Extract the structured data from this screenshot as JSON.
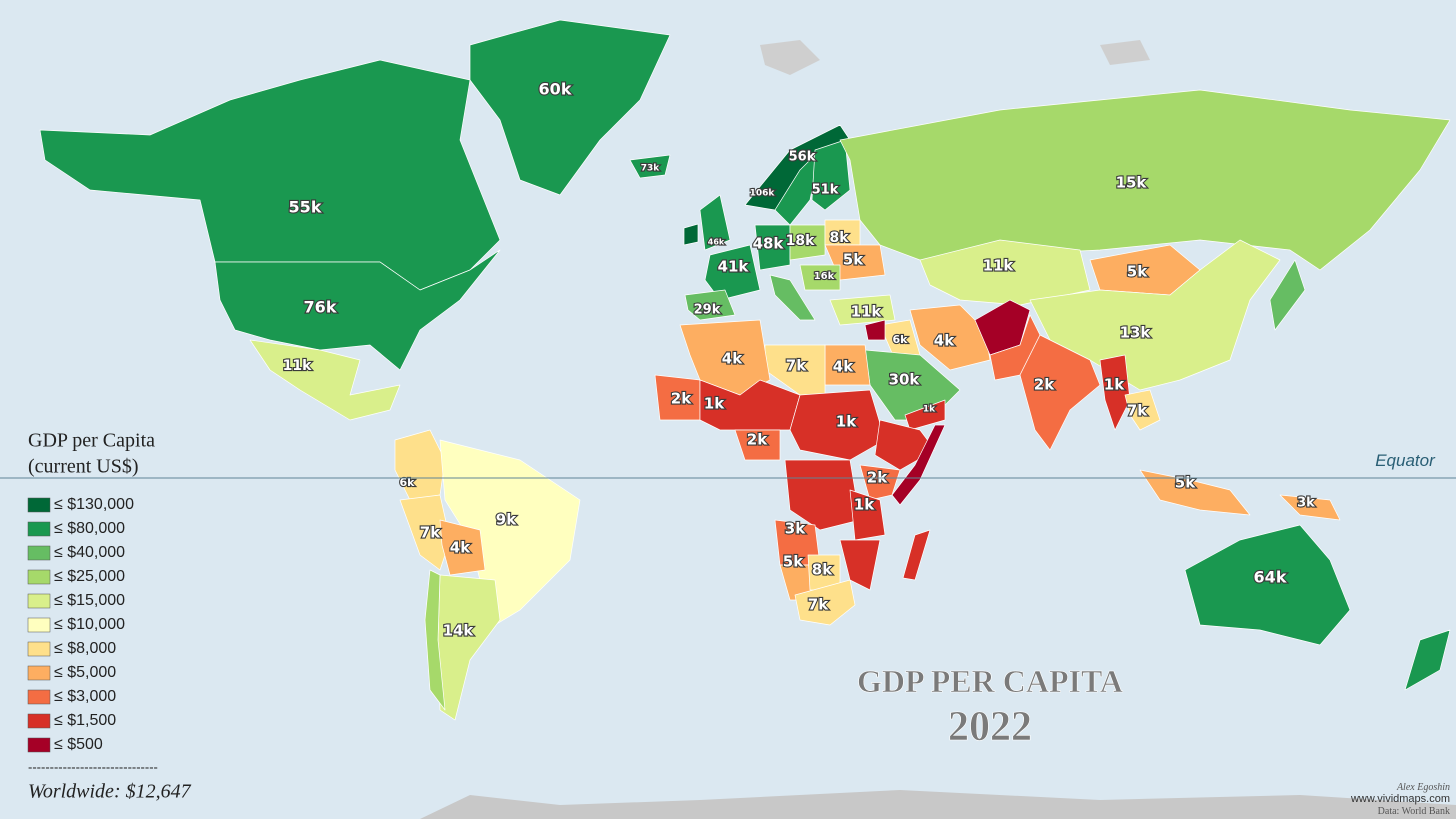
{
  "title": "GDP PER CAPITA",
  "year": "2022",
  "legend": {
    "title": [
      "GDP per Capita",
      "(current US$)"
    ],
    "items": [
      {
        "label": "≤ $130,000",
        "color": "#006837"
      },
      {
        "label": "≤ $80,000",
        "color": "#1a9850"
      },
      {
        "label": "≤ $40,000",
        "color": "#66bd63"
      },
      {
        "label": "≤ $25,000",
        "color": "#a6d96a"
      },
      {
        "label": "≤ $15,000",
        "color": "#d9ef8b"
      },
      {
        "label": "≤ $10,000",
        "color": "#ffffbf"
      },
      {
        "label": "≤ $8,000",
        "color": "#fee08b"
      },
      {
        "label": "≤ $5,000",
        "color": "#fdae61"
      },
      {
        "label": "≤ $3,000",
        "color": "#f46d43"
      },
      {
        "label": "≤ $1,500",
        "color": "#d73027"
      },
      {
        "label": "≤ $500",
        "color": "#a50026"
      }
    ],
    "separator": "------------------------------",
    "worldwide": "Worldwide: $12,647"
  },
  "equator": "Equator",
  "credits": [
    "Alex Egoshin",
    "www.vividmaps.com",
    "Data: World Bank"
  ],
  "regions": [
    {
      "label": "60k",
      "color": "#1a9850"
    },
    {
      "label": "55k",
      "color": "#1a9850"
    },
    {
      "label": "76k",
      "color": "#1a9850"
    },
    {
      "label": "11k",
      "color": "#d9ef8b"
    },
    {
      "label": "6k",
      "color": "#fee08b"
    },
    {
      "label": "9k",
      "color": "#ffffbf"
    },
    {
      "label": "7k",
      "color": "#fee08b"
    },
    {
      "label": "4k",
      "color": "#fdae61"
    },
    {
      "label": "14k",
      "color": "#d9ef8b"
    },
    {
      "color": "#a6d96a"
    },
    {
      "label": "73k",
      "color": "#1a9850"
    },
    {
      "label": "46k",
      "color": "#1a9850"
    },
    {
      "color": "#006837"
    },
    {
      "label": "106k",
      "color": "#006837"
    },
    {
      "label": "56k",
      "color": "#1a9850"
    },
    {
      "label": "51k",
      "color": "#1a9850"
    },
    {
      "label": "41k",
      "color": "#1a9850"
    },
    {
      "label": "48k",
      "color": "#1a9850"
    },
    {
      "label": "29k",
      "color": "#66bd63"
    },
    {
      "color": "#66bd63"
    },
    {
      "label": "18k",
      "color": "#a6d96a"
    },
    {
      "label": "8k",
      "color": "#fee08b"
    },
    {
      "label": "5k",
      "color": "#fdae61"
    },
    {
      "label": "16k",
      "color": "#a6d96a"
    },
    {
      "label": "11k",
      "color": "#d9ef8b"
    },
    {
      "label": "15k",
      "color": "#a6d96a"
    },
    {
      "label": "11k",
      "color": "#d9ef8b"
    },
    {
      "label": "5k",
      "color": "#fdae61"
    },
    {
      "label": "13k",
      "color": "#d9ef8b"
    },
    {
      "label": "4k",
      "color": "#fdae61"
    },
    {
      "color": "#a50026"
    },
    {
      "color": "#f46d43"
    },
    {
      "label": "2k",
      "color": "#f46d43"
    },
    {
      "label": "1k",
      "color": "#d73027"
    },
    {
      "label": "7k",
      "color": "#fee08b"
    },
    {
      "label": "6k",
      "color": "#fee08b"
    },
    {
      "color": "#a50026"
    },
    {
      "label": "30k",
      "color": "#66bd63"
    },
    {
      "label": "1k",
      "color": "#d73027"
    },
    {
      "label": "4k",
      "color": "#fdae61"
    },
    {
      "label": "7k",
      "color": "#fee08b"
    },
    {
      "label": "4k",
      "color": "#fdae61"
    },
    {
      "label": "2k",
      "color": "#f46d43"
    },
    {
      "label": "1k",
      "color": "#d73027"
    },
    {
      "label": "1k",
      "color": "#d73027"
    },
    {
      "label": "2k",
      "color": "#f46d43"
    },
    {
      "color": "#d73027"
    },
    {
      "color": "#a50026"
    },
    {
      "label": "2k",
      "color": "#f46d43"
    },
    {
      "color": "#d73027"
    },
    {
      "label": "1k",
      "color": "#d73027"
    },
    {
      "label": "3k",
      "color": "#f46d43"
    },
    {
      "label": "5k",
      "color": "#fdae61"
    },
    {
      "label": "8k",
      "color": "#fee08b"
    },
    {
      "label": "7k",
      "color": "#fee08b"
    },
    {
      "color": "#d73027"
    },
    {
      "color": "#d73027"
    },
    {
      "label": "5k",
      "color": "#fdae61"
    },
    {
      "label": "3k",
      "color": "#fdae61"
    },
    {
      "label": "64k",
      "color": "#1a9850"
    },
    {
      "color": "#1a9850"
    },
    {
      "color": "#66bd63"
    }
  ]
}
